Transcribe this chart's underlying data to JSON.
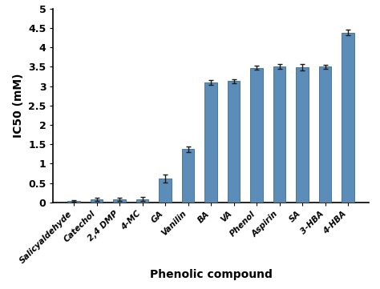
{
  "categories": [
    "Salicyaldehyde",
    "Catechol",
    "2,4 DMP",
    "4-MC",
    "GA",
    "Vanilin",
    "BA",
    "VA",
    "Phenol",
    "Aspirin",
    "SA",
    "3-HBA",
    "4-HBA"
  ],
  "values": [
    0.03,
    0.08,
    0.07,
    0.08,
    0.62,
    1.37,
    3.1,
    3.13,
    3.47,
    3.5,
    3.49,
    3.5,
    4.38
  ],
  "errors": [
    0.02,
    0.04,
    0.04,
    0.05,
    0.1,
    0.07,
    0.06,
    0.05,
    0.05,
    0.06,
    0.08,
    0.05,
    0.07
  ],
  "bar_color": "#5b8db8",
  "bar_edge_color": "#3a6b96",
  "error_color": "#1a1a1a",
  "xlabel": "Phenolic compound",
  "ylabel": "IC50 (mM)",
  "ylim": [
    0,
    5
  ],
  "yticks": [
    0,
    0.5,
    1.0,
    1.5,
    2.0,
    2.5,
    3.0,
    3.5,
    4.0,
    4.5,
    5.0
  ],
  "ytick_labels": [
    "0",
    "0.5",
    "1",
    "1.5",
    "2",
    "2.5",
    "3",
    "3.5",
    "4",
    "4.5",
    "5"
  ],
  "background_color": "#ffffff",
  "xlabel_fontsize": 10,
  "ylabel_fontsize": 10,
  "xtick_label_fontsize": 7.5,
  "ytick_label_fontsize": 9,
  "bar_width": 0.55
}
